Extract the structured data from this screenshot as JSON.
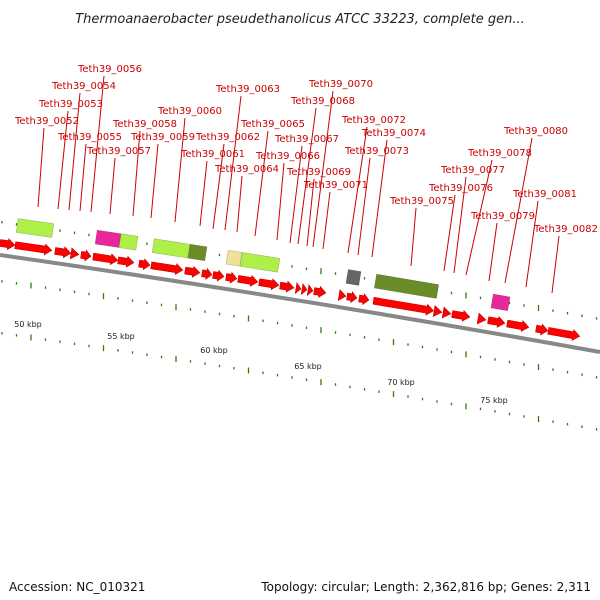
{
  "title": "Thermoanaerobacter pseudethanolicus ATCC 33223, complete gen...",
  "footer": {
    "accession": "Accession: NC_010321",
    "topology": "Topology: circular; Length: 2,362,816 bp; Genes: 2,311"
  },
  "colors": {
    "gene_forward": "#ff0000",
    "gene_label": "#cc0000",
    "backbone": "#888888",
    "tick": "#2e7d10",
    "feature_light_green": "#aef048",
    "feature_dark_olive": "#6a8c28",
    "feature_magenta": "#e8289a",
    "feature_khaki": "#f0e098",
    "feature_gray": "#666666"
  },
  "gene_labels": [
    "Teth39_0052",
    "Teth39_0053",
    "Teth39_0054",
    "Teth39_0055",
    "Teth39_0056",
    "Teth39_0057",
    "Teth39_0058",
    "Teth39_0059",
    "Teth39_0060",
    "Teth39_0061",
    "Teth39_0062",
    "Teth39_0063",
    "Teth39_0064",
    "Teth39_0065",
    "Teth39_0066",
    "Teth39_0067",
    "Teth39_0068",
    "Teth39_0069",
    "Teth39_0070",
    "Teth39_0071",
    "Teth39_0072",
    "Teth39_0073",
    "Teth39_0074",
    "Teth39_0075",
    "Teth39_0076",
    "Teth39_0077",
    "Teth39_0078",
    "Teth39_0079",
    "Teth39_0080",
    "Teth39_0081",
    "Teth39_0082"
  ],
  "kbp_labels": [
    "50 kbp",
    "55 kbp",
    "60 kbp",
    "65 kbp",
    "70 kbp",
    "75 kbp"
  ]
}
